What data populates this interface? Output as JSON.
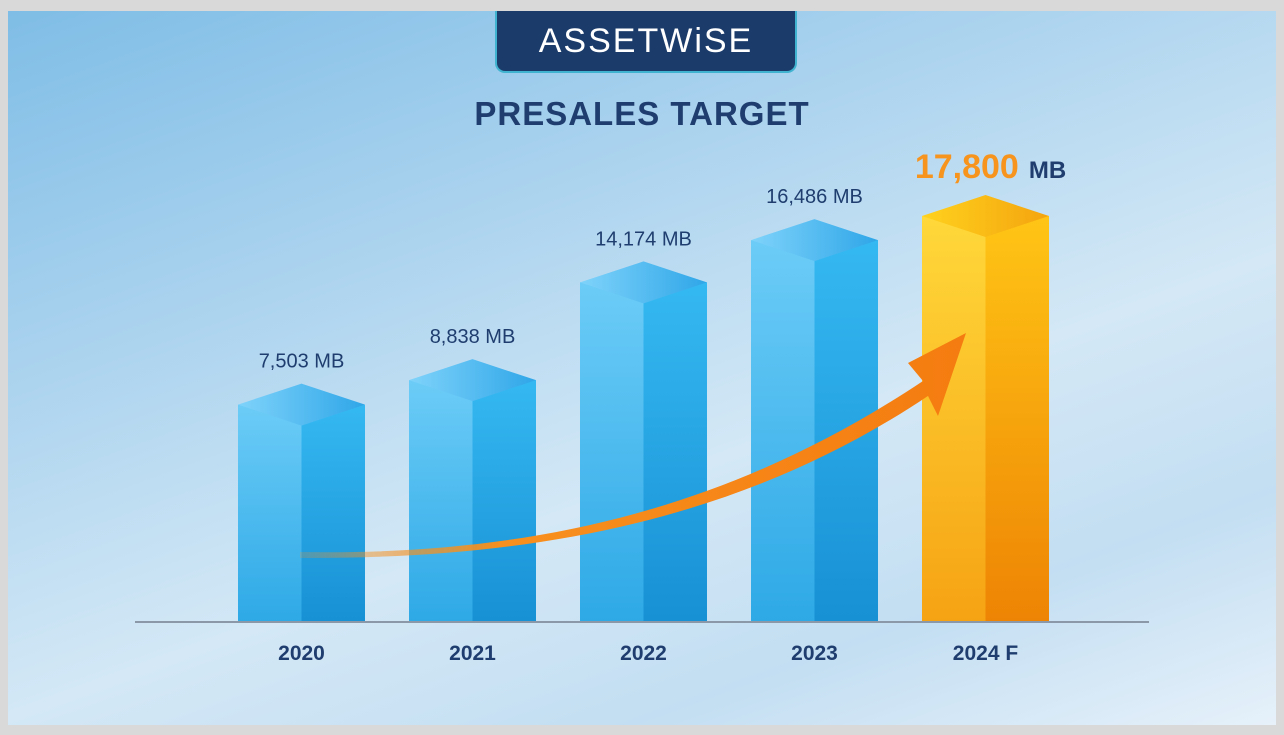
{
  "logo_text": "ASSETWiSE",
  "chart_data": {
    "type": "bar",
    "title": "PRESALES TARGET",
    "categories": [
      "2020",
      "2021",
      "2022",
      "2023",
      "2024 F"
    ],
    "values": [
      7503,
      8838,
      14174,
      16486,
      17800
    ],
    "data_labels": [
      "7,503 MB",
      "8,838 MB",
      "14,174 MB",
      "16,486 MB",
      "17,800"
    ],
    "highlight_unit": "MB",
    "unit": "MB",
    "xlabel": "",
    "ylabel": "",
    "ylim": [
      0,
      17800
    ],
    "grid": false,
    "colors": {
      "actual": "#3cb8ef",
      "forecast": "#f9b311",
      "arrow": "#f7901e",
      "highlight_text": "#f7941d",
      "text": "#1f3d6e"
    }
  }
}
